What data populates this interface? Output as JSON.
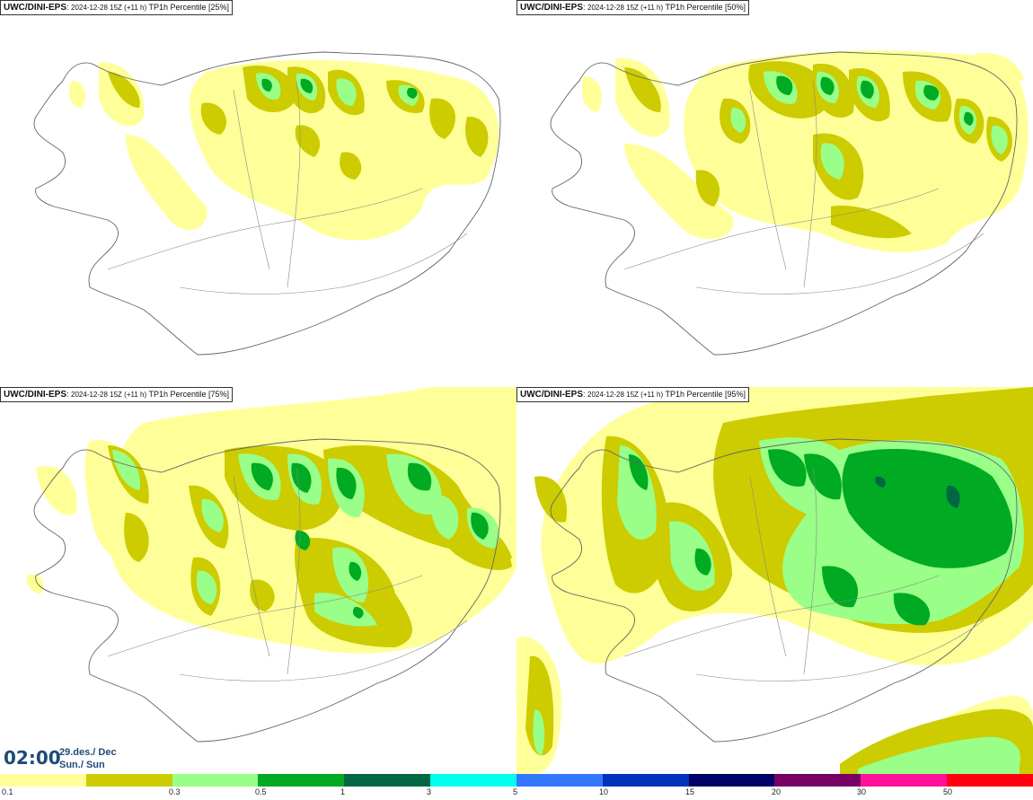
{
  "panels": [
    {
      "source": "UWC/DINI-EPS",
      "run": "2024-12-28 15Z (+11 h)",
      "label": "TP1h Percentile [25%]"
    },
    {
      "source": "UWC/DINI-EPS",
      "run": "2024-12-28 15Z (+11 h)",
      "label": "TP1h Percentile [50%]"
    },
    {
      "source": "UWC/DINI-EPS",
      "run": "2024-12-28 15Z (+11 h)",
      "label": "TP1h Percentile [75%]"
    },
    {
      "source": "UWC/DINI-EPS",
      "run": "2024-12-28 15Z (+11 h)",
      "label": "TP1h Percentile [95%]"
    }
  ],
  "valid_time": {
    "clock": "02:00",
    "date_line1": "29.des./ Dec",
    "date_line2": "Sun./ Sun"
  },
  "legend": {
    "colors": [
      "#ffff99",
      "#cccc00",
      "#99ff88",
      "#00aa22",
      "#006644",
      "#00ffee",
      "#3377ff",
      "#0033bb",
      "#000066",
      "#770066",
      "#ff1199",
      "#ff0011"
    ],
    "ticks": [
      "0.1",
      "0.3",
      "0.5",
      "1",
      "3",
      "5",
      "10",
      "15",
      "20",
      "30",
      "50"
    ]
  }
}
